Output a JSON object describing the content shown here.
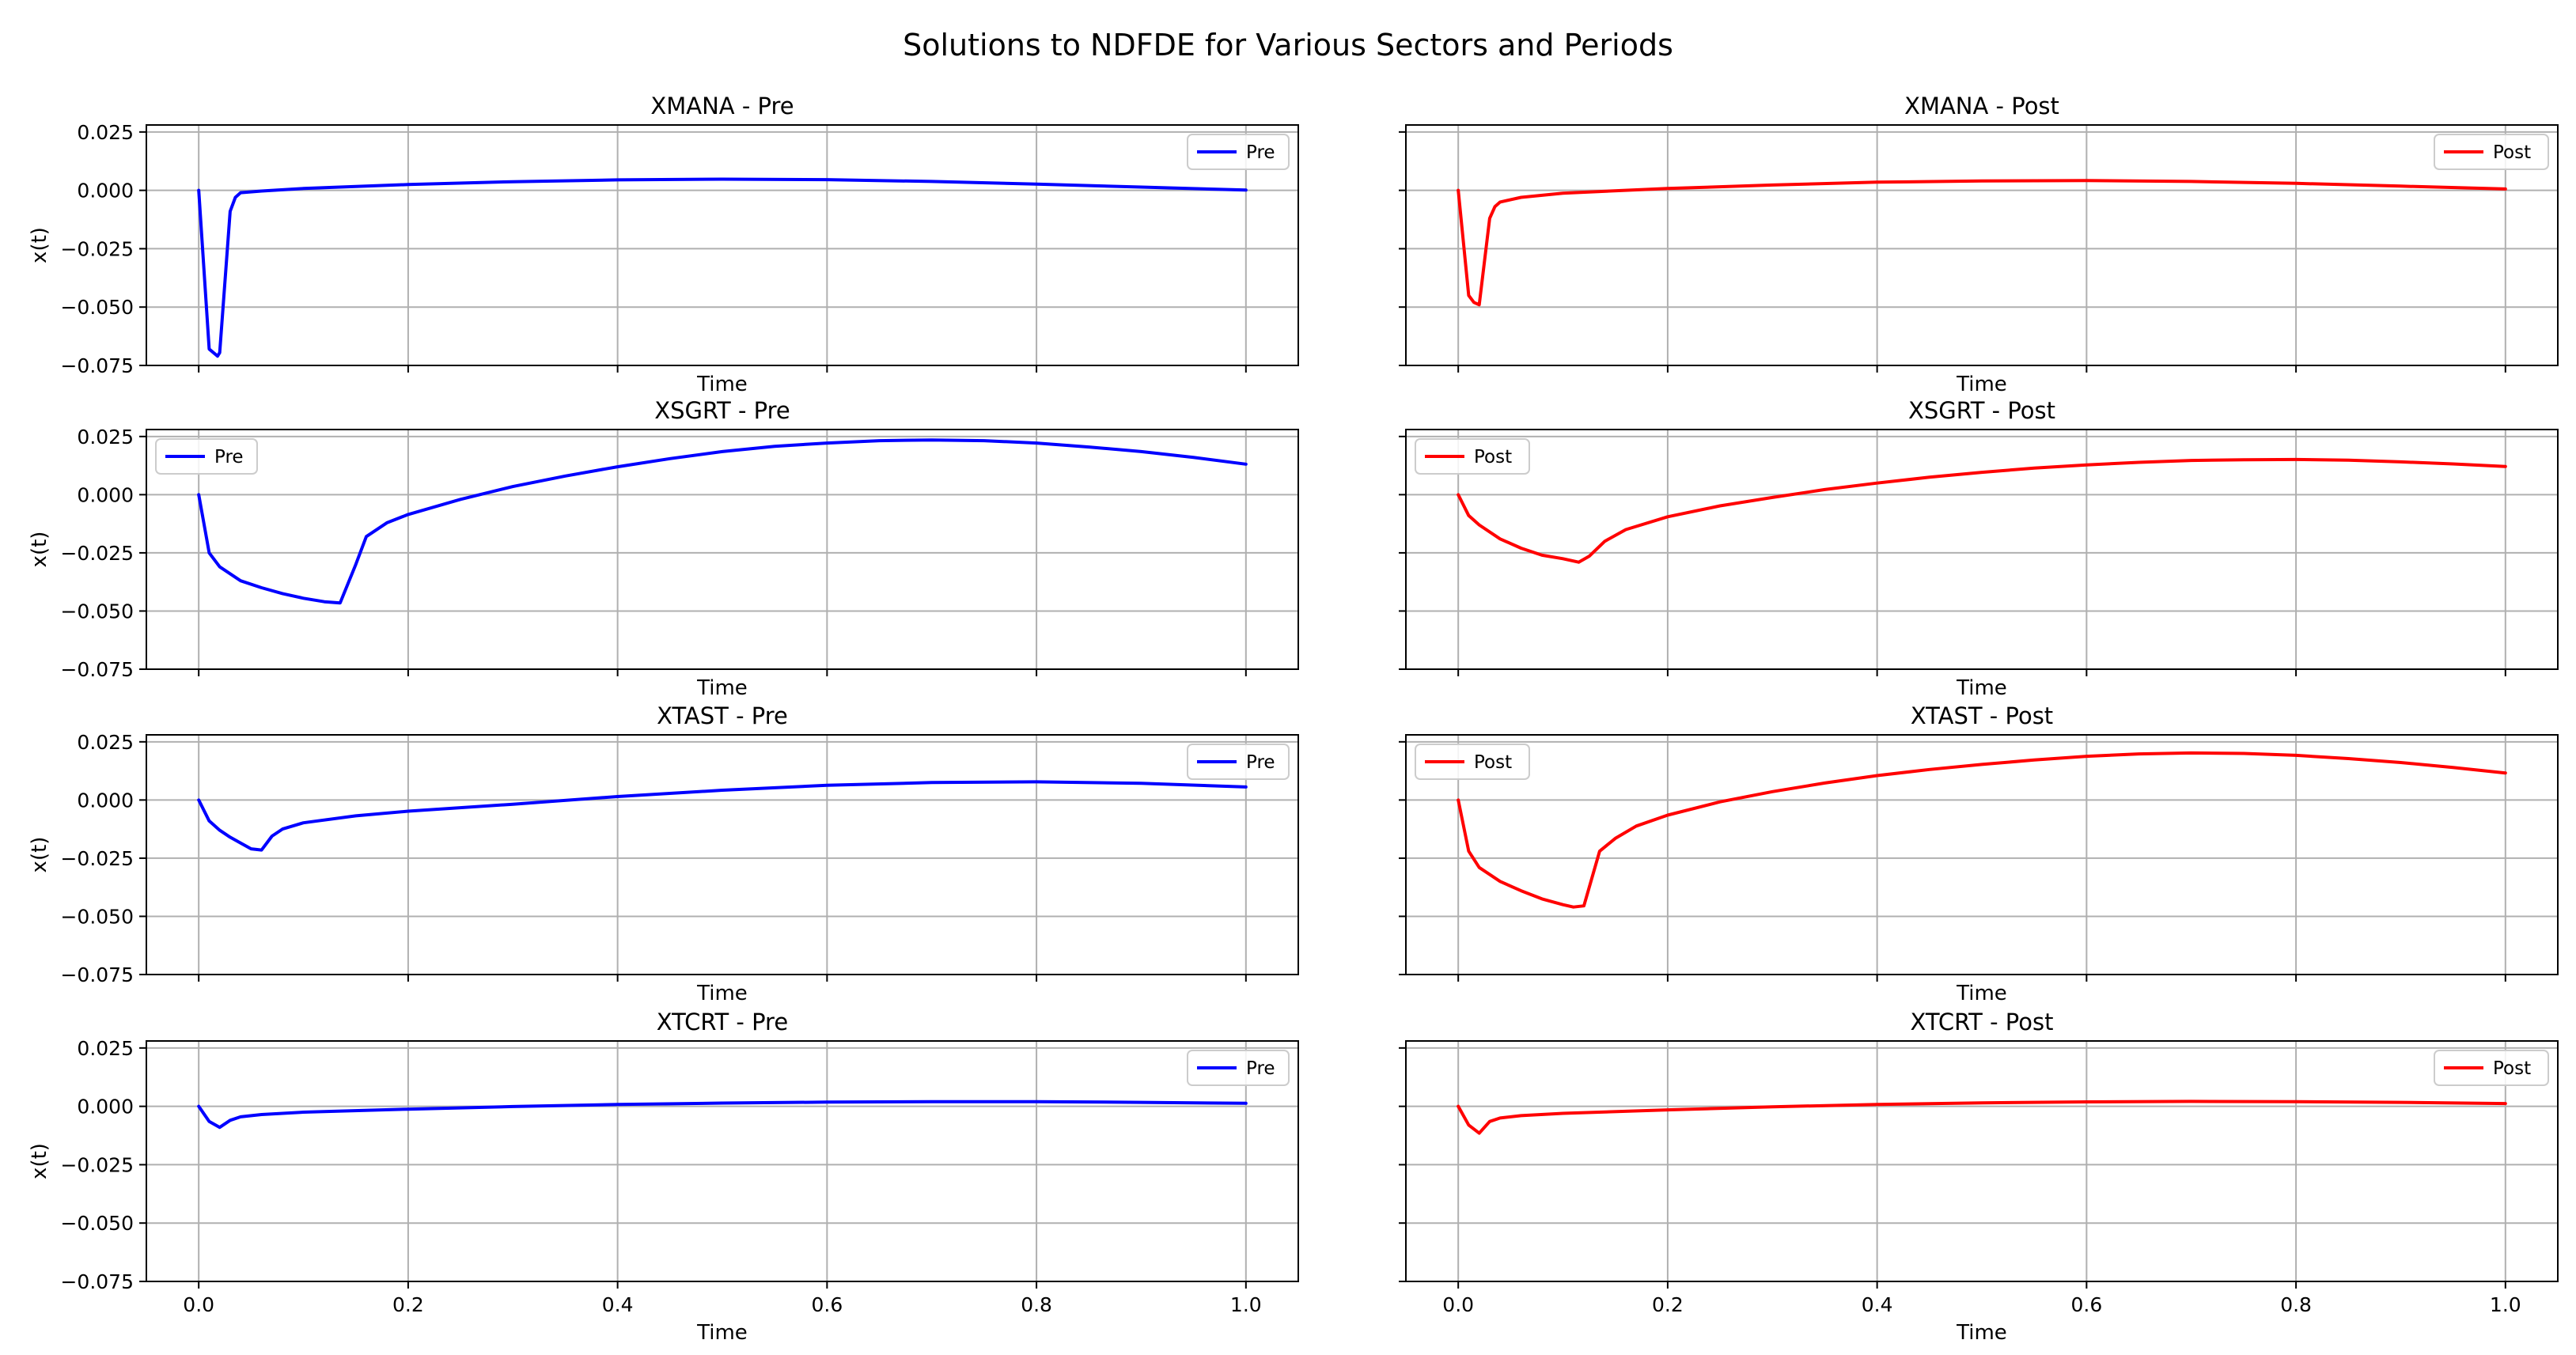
{
  "figure": {
    "title": "Solutions to NDFDE for Various Sectors and Periods"
  },
  "chart_data": {
    "type": "line",
    "title": "Solutions to NDFDE for Various Sectors and Periods",
    "xlim": [
      -0.05,
      1.05
    ],
    "ylim": [
      -0.075,
      0.028
    ],
    "xticks": [
      0.0,
      0.2,
      0.4,
      0.6,
      0.8,
      1.0
    ],
    "xtick_labels": [
      "0.0",
      "0.2",
      "0.4",
      "0.6",
      "0.8",
      "1.0"
    ],
    "yticks": [
      0.025,
      0.0,
      -0.025,
      -0.05,
      -0.075
    ],
    "ytick_labels": [
      "0.025",
      "0.000",
      "−0.025",
      "−0.050",
      "−0.075"
    ],
    "grid": true,
    "panels": [
      {
        "title": "XMANA - Pre",
        "xlabel": "Time",
        "ylabel": "x(t)",
        "legend_label": "Pre",
        "legend_loc": "upper right",
        "color": "#0000ff",
        "x": [
          0,
          0.01,
          0.018,
          0.02,
          0.03,
          0.035,
          0.04,
          0.06,
          0.1,
          0.2,
          0.3,
          0.4,
          0.5,
          0.6,
          0.7,
          0.8,
          0.9,
          1.0
        ],
        "y": [
          0,
          -0.068,
          -0.071,
          -0.0695,
          -0.009,
          -0.003,
          -0.001,
          -0.0003,
          0.0008,
          0.0025,
          0.0037,
          0.0045,
          0.0048,
          0.0046,
          0.0038,
          0.0027,
          0.0014,
          0.0001
        ]
      },
      {
        "title": "XMANA - Post",
        "xlabel": "Time",
        "ylabel": "",
        "legend_label": "Post",
        "legend_loc": "upper right",
        "color": "#ff0000",
        "x": [
          0,
          0.01,
          0.015,
          0.02,
          0.03,
          0.035,
          0.04,
          0.06,
          0.1,
          0.2,
          0.3,
          0.4,
          0.5,
          0.6,
          0.7,
          0.8,
          0.9,
          1.0
        ],
        "y": [
          0,
          -0.045,
          -0.048,
          -0.049,
          -0.012,
          -0.007,
          -0.005,
          -0.003,
          -0.0012,
          0.0008,
          0.0023,
          0.0035,
          0.004,
          0.0042,
          0.0038,
          0.003,
          0.0018,
          0.0006
        ]
      },
      {
        "title": "XSGRT - Pre",
        "xlabel": "Time",
        "ylabel": "x(t)",
        "legend_label": "Pre",
        "legend_loc": "upper left",
        "color": "#0000ff",
        "x": [
          0,
          0.01,
          0.02,
          0.04,
          0.06,
          0.08,
          0.1,
          0.12,
          0.135,
          0.15,
          0.16,
          0.18,
          0.2,
          0.25,
          0.3,
          0.35,
          0.4,
          0.45,
          0.5,
          0.55,
          0.6,
          0.65,
          0.7,
          0.75,
          0.8,
          0.85,
          0.9,
          0.95,
          1.0
        ],
        "y": [
          0,
          -0.025,
          -0.031,
          -0.037,
          -0.04,
          -0.0425,
          -0.0445,
          -0.046,
          -0.0465,
          -0.03,
          -0.018,
          -0.012,
          -0.0085,
          -0.002,
          0.0035,
          0.008,
          0.012,
          0.0155,
          0.0185,
          0.0208,
          0.0222,
          0.0232,
          0.0235,
          0.0232,
          0.0222,
          0.0205,
          0.0185,
          0.016,
          0.0131
        ]
      },
      {
        "title": "XSGRT - Post",
        "xlabel": "Time",
        "ylabel": "",
        "legend_label": "Post",
        "legend_loc": "upper left",
        "color": "#ff0000",
        "x": [
          0,
          0.01,
          0.02,
          0.04,
          0.06,
          0.08,
          0.1,
          0.115,
          0.125,
          0.14,
          0.16,
          0.2,
          0.25,
          0.3,
          0.35,
          0.4,
          0.45,
          0.5,
          0.55,
          0.6,
          0.65,
          0.7,
          0.75,
          0.8,
          0.85,
          0.9,
          0.95,
          1.0
        ],
        "y": [
          0,
          -0.009,
          -0.013,
          -0.019,
          -0.023,
          -0.026,
          -0.0275,
          -0.029,
          -0.0265,
          -0.02,
          -0.015,
          -0.0095,
          -0.0048,
          -0.0012,
          0.0022,
          0.005,
          0.0075,
          0.0096,
          0.0114,
          0.0128,
          0.0139,
          0.0147,
          0.015,
          0.0151,
          0.0148,
          0.0141,
          0.0132,
          0.0121
        ]
      },
      {
        "title": "XTAST - Pre",
        "xlabel": "Time",
        "ylabel": "x(t)",
        "legend_label": "Pre",
        "legend_loc": "upper right",
        "color": "#0000ff",
        "x": [
          0,
          0.01,
          0.02,
          0.03,
          0.04,
          0.05,
          0.06,
          0.07,
          0.08,
          0.1,
          0.15,
          0.2,
          0.3,
          0.4,
          0.5,
          0.6,
          0.7,
          0.8,
          0.9,
          1.0
        ],
        "y": [
          0,
          -0.009,
          -0.013,
          -0.016,
          -0.0185,
          -0.021,
          -0.0215,
          -0.0155,
          -0.0125,
          -0.0098,
          -0.0068,
          -0.0048,
          -0.0018,
          0.0015,
          0.0042,
          0.0063,
          0.0075,
          0.0078,
          0.0072,
          0.0056
        ]
      },
      {
        "title": "XTAST - Post",
        "xlabel": "Time",
        "ylabel": "",
        "legend_label": "Post",
        "legend_loc": "upper left",
        "color": "#ff0000",
        "x": [
          0,
          0.01,
          0.02,
          0.04,
          0.06,
          0.08,
          0.1,
          0.11,
          0.12,
          0.135,
          0.15,
          0.17,
          0.2,
          0.25,
          0.3,
          0.35,
          0.4,
          0.45,
          0.5,
          0.55,
          0.6,
          0.65,
          0.7,
          0.75,
          0.8,
          0.85,
          0.9,
          0.95,
          1.0
        ],
        "y": [
          0,
          -0.022,
          -0.029,
          -0.035,
          -0.039,
          -0.0425,
          -0.045,
          -0.046,
          -0.0455,
          -0.022,
          -0.0165,
          -0.0112,
          -0.0065,
          -0.0008,
          0.0036,
          0.0073,
          0.0105,
          0.0131,
          0.0153,
          0.0172,
          0.0188,
          0.0198,
          0.0202,
          0.02,
          0.0192,
          0.0178,
          0.0161,
          0.014,
          0.0116
        ]
      },
      {
        "title": "XTCRT - Pre",
        "xlabel": "Time",
        "ylabel": "x(t)",
        "legend_label": "Pre",
        "legend_loc": "upper right",
        "color": "#0000ff",
        "x": [
          0,
          0.01,
          0.02,
          0.03,
          0.04,
          0.06,
          0.1,
          0.2,
          0.3,
          0.4,
          0.5,
          0.6,
          0.7,
          0.8,
          0.9,
          1.0
        ],
        "y": [
          0,
          -0.0065,
          -0.009,
          -0.006,
          -0.0045,
          -0.0035,
          -0.0025,
          -0.0012,
          -0.0001,
          0.0008,
          0.0014,
          0.0018,
          0.002,
          0.002,
          0.0017,
          0.0013
        ]
      },
      {
        "title": "XTCRT - Post",
        "xlabel": "Time",
        "ylabel": "",
        "legend_label": "Post",
        "legend_loc": "upper right",
        "color": "#ff0000",
        "x": [
          0,
          0.01,
          0.02,
          0.03,
          0.04,
          0.06,
          0.1,
          0.2,
          0.3,
          0.4,
          0.5,
          0.6,
          0.7,
          0.8,
          0.9,
          1.0
        ],
        "y": [
          0,
          -0.008,
          -0.0115,
          -0.0065,
          -0.005,
          -0.004,
          -0.003,
          -0.0015,
          -0.0002,
          0.0008,
          0.0015,
          0.0019,
          0.0021,
          0.002,
          0.0017,
          0.0012
        ]
      }
    ]
  }
}
